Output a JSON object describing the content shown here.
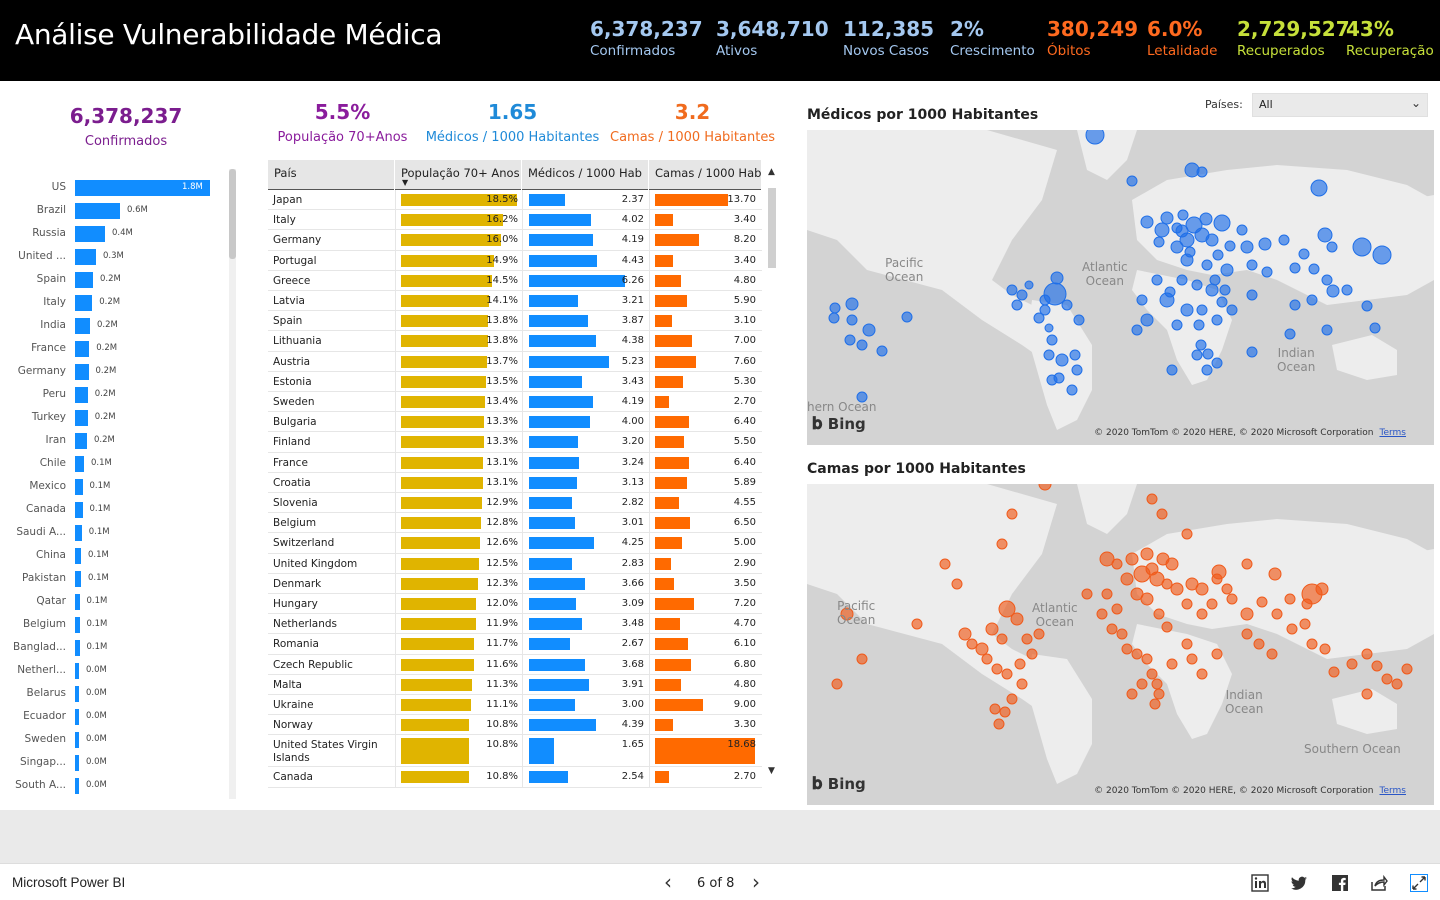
{
  "header": {
    "title": "Análise Vulnerabilidade Médica",
    "kpis": [
      {
        "value": "6,378,237",
        "label": "Confirmados",
        "color": "#a4c8f0"
      },
      {
        "value": "3,648,710",
        "label": "Ativos",
        "color": "#a4c8f0"
      },
      {
        "value": "112,385",
        "label": "Novos Casos",
        "color": "#a4c8f0"
      },
      {
        "value": "2%",
        "label": "Crescimento",
        "color": "#a4c8f0"
      },
      {
        "value": "380,249",
        "label": "Óbitos",
        "color": "#ff6a1f"
      },
      {
        "value": "6.0%",
        "label": "Letalidade",
        "color": "#ff6a1f"
      },
      {
        "value": "2,729,527",
        "label": "Recuperados",
        "color": "#c6e03a"
      },
      {
        "value": "43%",
        "label": "Recuperação",
        "color": "#c6e03a"
      }
    ]
  },
  "left_panel": {
    "confirmed_value": "6,378,237",
    "confirmed_label": "Confirmados",
    "color": "#7b1d8e"
  },
  "summary": [
    {
      "value": "5.5%",
      "label": "População 70+Anos",
      "color": "#8a1c9c"
    },
    {
      "value": "1.65",
      "label": "Médicos / 1000 Habitantes",
      "color": "#1f8ad8"
    },
    {
      "value": "3.2",
      "label": "Camas / 1000 Habitantes",
      "color": "#f06b1e"
    }
  ],
  "chart_data": {
    "type": "bar",
    "orientation": "horizontal",
    "categories": [
      "US",
      "Brazil",
      "Russia",
      "United ...",
      "Spain",
      "Italy",
      "India",
      "France",
      "Germany",
      "Peru",
      "Turkey",
      "Iran",
      "Chile",
      "Mexico",
      "Canada",
      "Saudi A...",
      "China",
      "Pakistan",
      "Qatar",
      "Belgium",
      "Banglad...",
      "Netherl...",
      "Belarus",
      "Ecuador",
      "Sweden",
      "Singap...",
      "South A..."
    ],
    "values": [
      1.8,
      0.6,
      0.4,
      0.3,
      0.2,
      0.2,
      0.2,
      0.2,
      0.2,
      0.2,
      0.2,
      0.2,
      0.1,
      0.1,
      0.1,
      0.1,
      0.1,
      0.1,
      0.1,
      0.1,
      0.1,
      0.0,
      0.0,
      0.0,
      0.0,
      0.0,
      0.0
    ],
    "bar_lengths_millions": [
      1.8,
      0.6,
      0.4,
      0.28,
      0.24,
      0.23,
      0.2,
      0.19,
      0.18,
      0.17,
      0.17,
      0.16,
      0.12,
      0.1,
      0.1,
      0.09,
      0.08,
      0.08,
      0.06,
      0.06,
      0.06,
      0.05,
      0.04,
      0.04,
      0.04,
      0.04,
      0.04
    ],
    "value_labels": [
      "1.8M",
      "0.6M",
      "0.4M",
      "0.3M",
      "0.2M",
      "0.2M",
      "0.2M",
      "0.2M",
      "0.2M",
      "0.2M",
      "0.2M",
      "0.2M",
      "0.1M",
      "0.1M",
      "0.1M",
      "0.1M",
      "0.1M",
      "0.1M",
      "0.1M",
      "0.1M",
      "0.1M",
      "0.0M",
      "0.0M",
      "0.0M",
      "0.0M",
      "0.0M",
      "0.0M"
    ],
    "color": "#118dff"
  },
  "table": {
    "columns": [
      "País",
      "População 70+ Anos",
      "Médicos / 1000 Hab",
      "Camas / 1000 Hab"
    ],
    "colors": {
      "pop": "#e0b400",
      "med": "#118dff",
      "beds": "#ff6a00"
    },
    "rows": [
      {
        "country": "Japan",
        "pop": "18.5%",
        "med": "2.37",
        "beds": "13.70"
      },
      {
        "country": "Italy",
        "pop": "16.2%",
        "med": "4.02",
        "beds": "3.40"
      },
      {
        "country": "Germany",
        "pop": "16.0%",
        "med": "4.19",
        "beds": "8.20"
      },
      {
        "country": "Portugal",
        "pop": "14.9%",
        "med": "4.43",
        "beds": "3.40"
      },
      {
        "country": "Greece",
        "pop": "14.5%",
        "med": "6.26",
        "beds": "4.80"
      },
      {
        "country": "Latvia",
        "pop": "14.1%",
        "med": "3.21",
        "beds": "5.90"
      },
      {
        "country": "Spain",
        "pop": "13.8%",
        "med": "3.87",
        "beds": "3.10"
      },
      {
        "country": "Lithuania",
        "pop": "13.8%",
        "med": "4.38",
        "beds": "7.00"
      },
      {
        "country": "Austria",
        "pop": "13.7%",
        "med": "5.23",
        "beds": "7.60"
      },
      {
        "country": "Estonia",
        "pop": "13.5%",
        "med": "3.43",
        "beds": "5.30"
      },
      {
        "country": "Sweden",
        "pop": "13.4%",
        "med": "4.19",
        "beds": "2.70"
      },
      {
        "country": "Bulgaria",
        "pop": "13.3%",
        "med": "4.00",
        "beds": "6.40"
      },
      {
        "country": "Finland",
        "pop": "13.3%",
        "med": "3.20",
        "beds": "5.50"
      },
      {
        "country": "France",
        "pop": "13.1%",
        "med": "3.24",
        "beds": "6.40"
      },
      {
        "country": "Croatia",
        "pop": "13.1%",
        "med": "3.13",
        "beds": "5.89"
      },
      {
        "country": "Slovenia",
        "pop": "12.9%",
        "med": "2.82",
        "beds": "4.55"
      },
      {
        "country": "Belgium",
        "pop": "12.8%",
        "med": "3.01",
        "beds": "6.50"
      },
      {
        "country": "Switzerland",
        "pop": "12.6%",
        "med": "4.25",
        "beds": "5.00"
      },
      {
        "country": "United Kingdom",
        "pop": "12.5%",
        "med": "2.83",
        "beds": "2.90"
      },
      {
        "country": "Denmark",
        "pop": "12.3%",
        "med": "3.66",
        "beds": "3.50"
      },
      {
        "country": "Hungary",
        "pop": "12.0%",
        "med": "3.09",
        "beds": "7.20"
      },
      {
        "country": "Netherlands",
        "pop": "11.9%",
        "med": "3.48",
        "beds": "4.70"
      },
      {
        "country": "Romania",
        "pop": "11.7%",
        "med": "2.67",
        "beds": "6.10"
      },
      {
        "country": "Czech Republic",
        "pop": "11.6%",
        "med": "3.68",
        "beds": "6.80"
      },
      {
        "country": "Malta",
        "pop": "11.3%",
        "med": "3.91",
        "beds": "4.80"
      },
      {
        "country": "Ukraine",
        "pop": "11.1%",
        "med": "3.00",
        "beds": "9.00"
      },
      {
        "country": "Norway",
        "pop": "10.8%",
        "med": "4.39",
        "beds": "3.30"
      },
      {
        "country": "United States Virgin Islands",
        "pop": "10.8%",
        "med": "1.65",
        "beds": "18.68"
      },
      {
        "country": "Canada",
        "pop": "10.8%",
        "med": "2.54",
        "beds": "2.70"
      }
    ]
  },
  "filter": {
    "label": "Países:",
    "value": "All"
  },
  "maps": [
    {
      "title": "Médicos por 1000 Habitantes",
      "color": "#1f6fe8",
      "oceans": [
        "Pacific\nOcean",
        "Atlantic\nOcean",
        "Indian\nOcean",
        "hern Ocean"
      ],
      "bing": "Bing",
      "copyright": "© 2020 TomTom © 2020 HERE, © 2020 Microsoft Corporation",
      "terms": "Terms"
    },
    {
      "title": "Camas por 1000 Habitantes",
      "color": "#f05a1a",
      "oceans": [
        "Pacific\nOcean",
        "Atlantic\nOcean",
        "Indian\nOcean",
        "Southern Ocean"
      ],
      "bing": "Bing",
      "copyright": "© 2020 TomTom © 2020 HERE, © 2020 Microsoft Corporation",
      "terms": "Terms"
    }
  ],
  "footer": {
    "brand": "Microsoft Power BI",
    "page": "6 of 8",
    "icons": [
      "linkedin-icon",
      "twitter-icon",
      "facebook-icon",
      "share-icon",
      "fullscreen-icon"
    ]
  }
}
